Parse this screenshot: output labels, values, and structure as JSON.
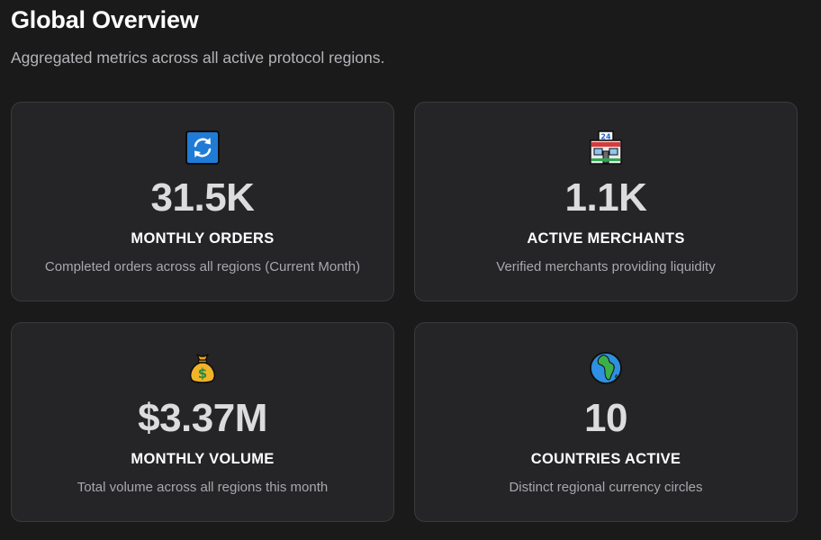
{
  "header": {
    "title": "Global Overview",
    "subtitle": "Aggregated metrics across all active protocol regions."
  },
  "cards": [
    {
      "icon": "refresh-icon",
      "value": "31.5K",
      "label": "MONTHLY ORDERS",
      "description": "Completed orders across all regions (Current Month)"
    },
    {
      "icon": "convenience-store-icon",
      "value": "1.1K",
      "label": "ACTIVE MERCHANTS",
      "description": "Verified merchants providing liquidity",
      "icon_text": "24"
    },
    {
      "icon": "money-bag-icon",
      "value": "$3.37M",
      "label": "MONTHLY VOLUME",
      "description": "Total volume across all regions this month"
    },
    {
      "icon": "globe-icon",
      "value": "10",
      "label": "COUNTRIES ACTIVE",
      "description": "Distinct regional currency circles"
    }
  ]
}
